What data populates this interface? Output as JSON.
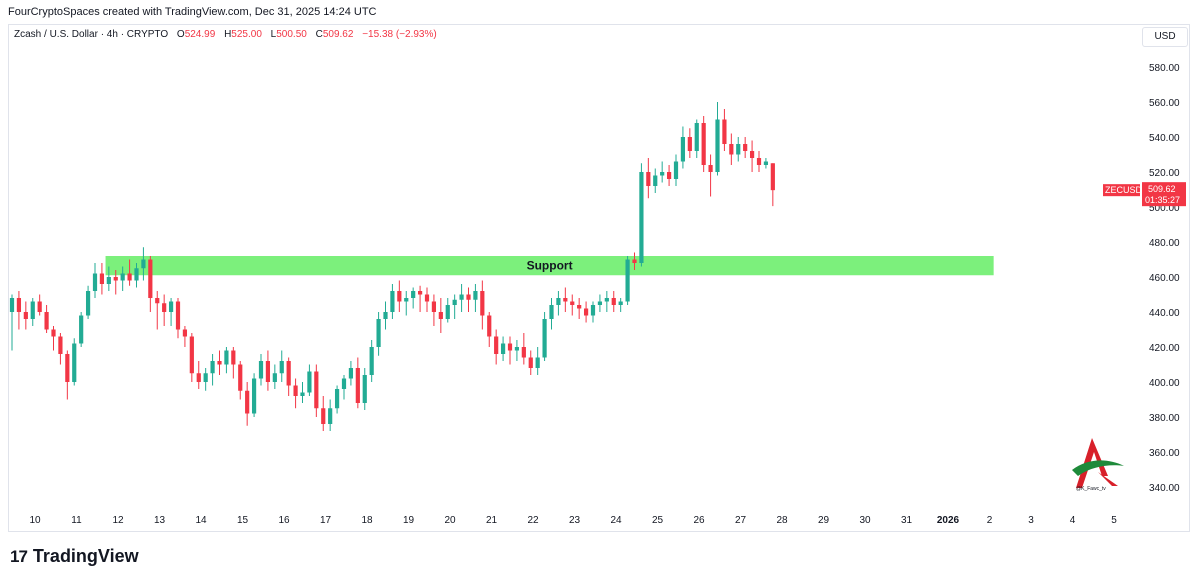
{
  "header": {
    "credit": "FourCryptoSpaces created with TradingView.com, Dec 31, 2025 14:24 UTC"
  },
  "legend": {
    "symbol": "Zcash / U.S. Dollar · 4h · CRYPTO",
    "open_label": "O",
    "open": "524.99",
    "high_label": "H",
    "high": "525.00",
    "low_label": "L",
    "low": "500.50",
    "close_label": "C",
    "close": "509.62",
    "change": "−15.38 (−2.93%)"
  },
  "currency_button": "USD",
  "price_tag": {
    "ticker": "ZECUSD",
    "price": "509.62",
    "countdown": "01:35:27",
    "color": "#f23645"
  },
  "brand": {
    "logo_mark": "17",
    "name": "TradingView"
  },
  "watermark": {
    "handle": "@K_Fawc_tv"
  },
  "colors": {
    "up": "#22ab94",
    "down": "#f23645",
    "support_zone": "#7cf07c"
  },
  "chart_data": {
    "type": "candlestick",
    "timeframe": "4h",
    "y_axis_ticks": [
      340,
      360,
      380,
      400,
      420,
      440,
      460,
      480,
      500,
      520,
      540,
      560,
      580
    ],
    "y_axis_tick_labels": [
      "340.00",
      "360.00",
      "380.00",
      "400.00",
      "420.00",
      "440.00",
      "460.00",
      "480.00",
      "500.00",
      "520.00",
      "540.00",
      "560.00",
      "580.00"
    ],
    "ylim": [
      328,
      592
    ],
    "x_axis_labels": [
      "10",
      "11",
      "12",
      "13",
      "14",
      "15",
      "16",
      "17",
      "18",
      "19",
      "20",
      "21",
      "22",
      "23",
      "24",
      "25",
      "26",
      "27",
      "28",
      "29",
      "30",
      "31",
      "2026",
      "2",
      "3",
      "4",
      "5"
    ],
    "support_zone": {
      "label": "Support",
      "low": 461,
      "high": 472,
      "from_day_index": 1.7,
      "to_day_index": 23.1
    },
    "last_price": 509.62,
    "candles": [
      [
        440,
        450,
        418,
        448
      ],
      [
        448,
        452,
        430,
        440
      ],
      [
        440,
        446,
        430,
        436
      ],
      [
        436,
        448,
        432,
        446
      ],
      [
        446,
        450,
        438,
        440
      ],
      [
        440,
        444,
        428,
        430
      ],
      [
        430,
        432,
        418,
        426
      ],
      [
        426,
        428,
        410,
        416
      ],
      [
        416,
        418,
        390,
        400
      ],
      [
        400,
        425,
        398,
        422
      ],
      [
        422,
        440,
        420,
        438
      ],
      [
        438,
        455,
        436,
        452
      ],
      [
        452,
        468,
        448,
        462
      ],
      [
        462,
        468,
        450,
        456
      ],
      [
        456,
        466,
        452,
        460
      ],
      [
        460,
        464,
        450,
        458
      ],
      [
        458,
        466,
        452,
        462
      ],
      [
        462,
        470,
        455,
        458
      ],
      [
        458,
        468,
        454,
        465
      ],
      [
        465,
        477,
        458,
        470
      ],
      [
        470,
        472,
        440,
        448
      ],
      [
        448,
        452,
        430,
        445
      ],
      [
        445,
        450,
        432,
        440
      ],
      [
        440,
        448,
        432,
        446
      ],
      [
        446,
        448,
        425,
        430
      ],
      [
        430,
        432,
        420,
        426
      ],
      [
        426,
        428,
        400,
        405
      ],
      [
        405,
        412,
        396,
        400
      ],
      [
        400,
        408,
        395,
        405
      ],
      [
        405,
        416,
        398,
        412
      ],
      [
        412,
        418,
        404,
        410
      ],
      [
        410,
        420,
        405,
        418
      ],
      [
        418,
        420,
        402,
        410
      ],
      [
        410,
        412,
        390,
        395
      ],
      [
        395,
        400,
        375,
        382
      ],
      [
        382,
        405,
        380,
        402
      ],
      [
        402,
        416,
        398,
        412
      ],
      [
        412,
        418,
        395,
        400
      ],
      [
        400,
        410,
        396,
        405
      ],
      [
        405,
        418,
        400,
        412
      ],
      [
        412,
        414,
        392,
        398
      ],
      [
        398,
        402,
        385,
        392
      ],
      [
        392,
        400,
        388,
        394
      ],
      [
        394,
        410,
        392,
        406
      ],
      [
        406,
        410,
        380,
        385
      ],
      [
        385,
        392,
        372,
        376
      ],
      [
        376,
        390,
        372,
        385
      ],
      [
        385,
        398,
        382,
        396
      ],
      [
        396,
        404,
        390,
        402
      ],
      [
        402,
        412,
        398,
        408
      ],
      [
        408,
        414,
        385,
        388
      ],
      [
        388,
        408,
        384,
        404
      ],
      [
        404,
        424,
        400,
        420
      ],
      [
        420,
        440,
        415,
        436
      ],
      [
        436,
        446,
        430,
        440
      ],
      [
        440,
        456,
        436,
        452
      ],
      [
        452,
        458,
        440,
        446
      ],
      [
        446,
        452,
        438,
        448
      ],
      [
        448,
        454,
        442,
        452
      ],
      [
        452,
        455,
        440,
        450
      ],
      [
        450,
        454,
        440,
        446
      ],
      [
        446,
        450,
        432,
        440
      ],
      [
        440,
        448,
        428,
        436
      ],
      [
        436,
        448,
        434,
        444
      ],
      [
        444,
        450,
        436,
        447
      ],
      [
        447,
        456,
        440,
        450
      ],
      [
        450,
        454,
        440,
        447
      ],
      [
        447,
        456,
        440,
        452
      ],
      [
        452,
        458,
        430,
        438
      ],
      [
        438,
        440,
        420,
        426
      ],
      [
        426,
        430,
        410,
        416
      ],
      [
        416,
        426,
        412,
        422
      ],
      [
        422,
        426,
        410,
        418
      ],
      [
        418,
        424,
        412,
        420
      ],
      [
        420,
        428,
        410,
        414
      ],
      [
        414,
        418,
        404,
        408
      ],
      [
        408,
        420,
        404,
        414
      ],
      [
        414,
        440,
        412,
        436
      ],
      [
        436,
        448,
        430,
        444
      ],
      [
        444,
        452,
        438,
        448
      ],
      [
        448,
        454,
        440,
        446
      ],
      [
        446,
        450,
        438,
        444
      ],
      [
        444,
        448,
        436,
        442
      ],
      [
        442,
        446,
        434,
        438
      ],
      [
        438,
        446,
        434,
        444
      ],
      [
        444,
        450,
        440,
        446
      ],
      [
        446,
        452,
        440,
        448
      ],
      [
        448,
        452,
        440,
        444
      ],
      [
        444,
        448,
        440,
        446
      ],
      [
        446,
        472,
        444,
        470
      ],
      [
        470,
        474,
        464,
        468
      ],
      [
        468,
        525,
        466,
        520
      ],
      [
        520,
        528,
        505,
        512
      ],
      [
        512,
        522,
        508,
        518
      ],
      [
        518,
        526,
        514,
        520
      ],
      [
        520,
        524,
        512,
        516
      ],
      [
        516,
        530,
        512,
        526
      ],
      [
        526,
        546,
        522,
        540
      ],
      [
        540,
        545,
        528,
        532
      ],
      [
        532,
        550,
        528,
        548
      ],
      [
        548,
        552,
        520,
        524
      ],
      [
        524,
        530,
        506,
        520
      ],
      [
        520,
        560,
        518,
        550
      ],
      [
        550,
        556,
        532,
        536
      ],
      [
        536,
        542,
        524,
        530
      ],
      [
        530,
        540,
        526,
        536
      ],
      [
        536,
        540,
        528,
        532
      ],
      [
        532,
        538,
        520,
        528
      ],
      [
        528,
        532,
        520,
        524
      ],
      [
        524,
        528,
        522,
        526
      ],
      [
        525,
        525,
        500.5,
        509.62
      ]
    ]
  }
}
